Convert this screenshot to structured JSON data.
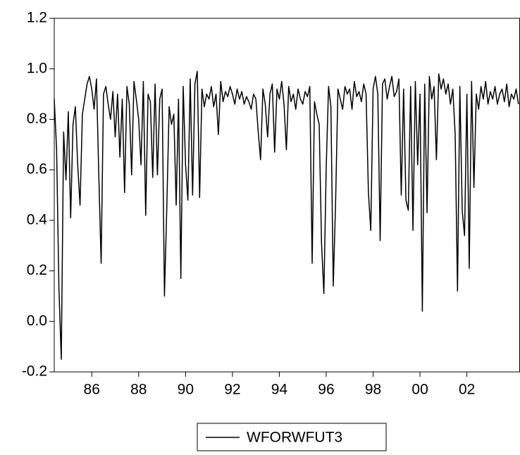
{
  "chart_data": {
    "type": "line",
    "xlim": [
      1984.4,
      2004.25
    ],
    "ylim": [
      -0.2,
      1.2
    ],
    "yticks": [
      -0.2,
      {
        "value": 0,
        "label": "0.0"
      },
      0.2,
      0.4,
      0.6,
      0.8,
      {
        "value": 1,
        "label": "1.0"
      },
      1.2
    ],
    "xticks": [
      {
        "value": 1986,
        "label": "86"
      },
      {
        "value": 1988,
        "label": "88"
      },
      {
        "value": 1990,
        "label": "90"
      },
      {
        "value": 1992,
        "label": "92"
      },
      {
        "value": 1994,
        "label": "94"
      },
      {
        "value": 1996,
        "label": "96"
      },
      {
        "value": 1998,
        "label": "98"
      },
      {
        "value": 2000,
        "label": "00"
      },
      {
        "value": 2002,
        "label": "02"
      }
    ],
    "series": [
      {
        "name": "WFORWFUT3",
        "color": "#000000",
        "x": [
          1984.4,
          1984.5,
          1984.6,
          1984.7,
          1984.8,
          1984.9,
          1985.0,
          1985.1,
          1985.2,
          1985.3,
          1985.4,
          1985.5,
          1985.6,
          1985.7,
          1985.8,
          1985.9,
          1986.0,
          1986.1,
          1986.2,
          1986.3,
          1986.4,
          1986.5,
          1986.6,
          1986.7,
          1986.8,
          1986.9,
          1987.0,
          1987.1,
          1987.2,
          1987.3,
          1987.4,
          1987.5,
          1987.6,
          1987.7,
          1987.8,
          1987.9,
          1988.0,
          1988.1,
          1988.2,
          1988.3,
          1988.4,
          1988.5,
          1988.6,
          1988.7,
          1988.8,
          1988.9,
          1989.0,
          1989.1,
          1989.2,
          1989.3,
          1989.4,
          1989.5,
          1989.6,
          1989.7,
          1989.8,
          1989.9,
          1990.0,
          1990.1,
          1990.2,
          1990.3,
          1990.4,
          1990.5,
          1990.6,
          1990.7,
          1990.8,
          1990.9,
          1991.0,
          1991.1,
          1991.2,
          1991.3,
          1991.4,
          1991.5,
          1991.6,
          1991.7,
          1991.8,
          1991.9,
          1992.0,
          1992.1,
          1992.2,
          1992.3,
          1992.4,
          1992.5,
          1992.6,
          1992.7,
          1992.8,
          1992.9,
          1993.0,
          1993.1,
          1993.2,
          1993.3,
          1993.4,
          1993.5,
          1993.6,
          1993.7,
          1993.8,
          1993.9,
          1994.0,
          1994.1,
          1994.2,
          1994.3,
          1994.4,
          1994.5,
          1994.6,
          1994.7,
          1994.8,
          1994.9,
          1995.0,
          1995.1,
          1995.2,
          1995.3,
          1995.4,
          1995.5,
          1995.6,
          1995.7,
          1995.8,
          1995.9,
          1996.0,
          1996.1,
          1996.2,
          1996.3,
          1996.4,
          1996.5,
          1996.6,
          1996.7,
          1996.8,
          1996.9,
          1997.0,
          1997.1,
          1997.2,
          1997.3,
          1997.4,
          1997.5,
          1997.6,
          1997.7,
          1997.8,
          1997.9,
          1998.0,
          1998.1,
          1998.2,
          1998.3,
          1998.4,
          1998.5,
          1998.6,
          1998.7,
          1998.8,
          1998.9,
          1999.0,
          1999.1,
          1999.2,
          1999.3,
          1999.4,
          1999.5,
          1999.6,
          1999.7,
          1999.8,
          1999.9,
          2000.0,
          2000.1,
          2000.2,
          2000.3,
          2000.4,
          2000.5,
          2000.6,
          2000.7,
          2000.8,
          2000.9,
          2001.0,
          2001.1,
          2001.2,
          2001.3,
          2001.4,
          2001.5,
          2001.6,
          2001.7,
          2001.8,
          2001.9,
          2002.0,
          2002.1,
          2002.2,
          2002.3,
          2002.4,
          2002.5,
          2002.6,
          2002.7,
          2002.8,
          2002.9,
          2003.0,
          2003.1,
          2003.2,
          2003.3,
          2003.4,
          2003.5,
          2003.6,
          2003.7,
          2003.8,
          2003.9,
          2004.0,
          2004.1,
          2004.2
        ],
        "values": [
          0.88,
          0.68,
          0.13,
          -0.15,
          0.75,
          0.56,
          0.83,
          0.41,
          0.78,
          0.85,
          0.62,
          0.46,
          0.82,
          0.88,
          0.94,
          0.97,
          0.92,
          0.84,
          0.96,
          0.58,
          0.23,
          0.9,
          0.93,
          0.86,
          0.8,
          0.91,
          0.73,
          0.9,
          0.65,
          0.88,
          0.51,
          0.93,
          0.86,
          0.58,
          0.95,
          0.88,
          0.8,
          0.62,
          0.95,
          0.42,
          0.9,
          0.87,
          0.57,
          0.94,
          0.58,
          0.88,
          0.92,
          0.1,
          0.45,
          0.85,
          0.78,
          0.82,
          0.46,
          0.88,
          0.17,
          0.93,
          0.62,
          0.48,
          0.96,
          0.5,
          0.94,
          0.99,
          0.49,
          0.92,
          0.85,
          0.9,
          0.88,
          0.93,
          0.85,
          0.9,
          0.74,
          0.95,
          0.87,
          0.91,
          0.89,
          0.93,
          0.9,
          0.86,
          0.92,
          0.88,
          0.91,
          0.86,
          0.89,
          0.87,
          0.84,
          0.9,
          0.88,
          0.75,
          0.64,
          0.92,
          0.86,
          0.73,
          0.9,
          0.94,
          0.67,
          0.92,
          0.88,
          0.95,
          0.86,
          0.68,
          0.93,
          0.87,
          0.9,
          0.84,
          0.92,
          0.88,
          0.86,
          0.91,
          0.89,
          0.93,
          0.23,
          0.87,
          0.82,
          0.78,
          0.31,
          0.11,
          0.61,
          0.93,
          0.85,
          0.14,
          0.47,
          0.92,
          0.88,
          0.84,
          0.93,
          0.9,
          0.92,
          0.84,
          0.95,
          0.89,
          0.91,
          0.87,
          0.94,
          0.9,
          0.51,
          0.36,
          0.92,
          0.97,
          0.9,
          0.32,
          0.94,
          0.96,
          0.88,
          0.93,
          0.97,
          0.89,
          0.91,
          0.96,
          0.5,
          0.92,
          0.48,
          0.44,
          0.93,
          0.36,
          0.95,
          0.62,
          0.9,
          0.04,
          0.94,
          0.43,
          0.97,
          0.88,
          0.93,
          0.64,
          0.98,
          0.92,
          0.96,
          0.9,
          0.94,
          0.86,
          0.92,
          0.74,
          0.12,
          0.93,
          0.44,
          0.34,
          0.9,
          0.21,
          0.95,
          0.53,
          0.9,
          0.84,
          0.93,
          0.88,
          0.95,
          0.86,
          0.91,
          0.88,
          0.93,
          0.86,
          0.9,
          0.92,
          0.87,
          0.94,
          0.85,
          0.9,
          0.88,
          0.92,
          0.86
        ]
      }
    ]
  }
}
